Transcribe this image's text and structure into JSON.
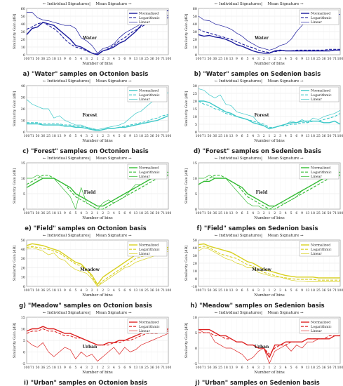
{
  "common": {
    "xlabel": "Number of bins",
    "ylabel": "Similarity Gain [dB]",
    "header_left": "← Individual Signatures",
    "header_sep": "|",
    "header_right": "Mean Signature →",
    "legend": [
      "Normalized",
      "Logarithmic",
      "Linear"
    ],
    "x_ticks": [
      "100",
      "71",
      "50",
      "36",
      "25",
      "18",
      "13",
      "9",
      "6",
      "5",
      "4",
      "3",
      "2",
      "1",
      "2",
      "3",
      "4",
      "5",
      "6",
      "9",
      "13",
      "18",
      "25",
      "36",
      "50",
      "71",
      "100"
    ]
  },
  "chart_data": [
    {
      "type": "line",
      "panel": "a",
      "caption": "a) \"Water\" samples on Octonion basis",
      "label": "Water",
      "color": "#1a1a9c",
      "ylim": [
        0,
        60
      ],
      "yticks": [
        0,
        10,
        20,
        30,
        40,
        50,
        60
      ],
      "series": [
        {
          "name": "Normalized",
          "values": [
            26,
            34,
            36,
            42,
            40,
            38,
            32,
            26,
            20,
            12,
            10,
            6,
            2,
            0,
            5,
            7,
            10,
            15,
            18,
            24,
            30,
            38,
            46,
            52,
            56,
            57,
            57
          ]
        },
        {
          "name": "Logarithmic",
          "values": [
            33,
            36,
            40,
            42,
            38,
            34,
            28,
            20,
            14,
            10,
            8,
            5,
            2,
            1,
            5,
            8,
            12,
            18,
            22,
            28,
            32,
            36,
            40,
            42,
            44,
            46,
            48
          ]
        },
        {
          "name": "Linear",
          "values": [
            55,
            55,
            48,
            45,
            44,
            42,
            40,
            38,
            38,
            34,
            22,
            18,
            12,
            2,
            8,
            10,
            14,
            22,
            28,
            32,
            36,
            40,
            44,
            50,
            52,
            54,
            50
          ]
        }
      ]
    },
    {
      "type": "line",
      "panel": "b",
      "caption": "b) \"Water\" samples on Sedenion basis",
      "label": "Water",
      "color": "#1a1a9c",
      "ylim": [
        0,
        60
      ],
      "yticks": [
        0,
        10,
        20,
        30,
        40,
        50,
        60
      ],
      "series": [
        {
          "name": "Normalized",
          "values": [
            26,
            24,
            25,
            23,
            22,
            20,
            17,
            13,
            11,
            8,
            5,
            3,
            2,
            2,
            5,
            6,
            5,
            5,
            5,
            5,
            5,
            5,
            5,
            5,
            5,
            6,
            6
          ]
        },
        {
          "name": "Logarithmic",
          "values": [
            33,
            30,
            28,
            26,
            24,
            22,
            20,
            17,
            14,
            11,
            9,
            6,
            4,
            3,
            4,
            5,
            5,
            5,
            6,
            6,
            6,
            6,
            6,
            6,
            7,
            7,
            7
          ]
        },
        {
          "name": "Linear",
          "values": [
            50,
            45,
            44,
            40,
            38,
            36,
            33,
            28,
            24,
            18,
            14,
            10,
            8,
            6,
            8,
            12,
            14,
            20,
            30,
            38,
            44,
            48,
            50,
            52,
            50,
            54,
            52
          ]
        }
      ]
    },
    {
      "type": "line",
      "panel": "c",
      "caption": "c) \"Forest\" samples on Octonion basis",
      "label": "Forest",
      "color": "#3cc8c8",
      "ylim": [
        0,
        40
      ],
      "yticks": [
        0,
        10,
        20,
        30,
        40
      ],
      "series": [
        {
          "name": "Normalized",
          "values": [
            7,
            7,
            7,
            6,
            6,
            6,
            6,
            5,
            5,
            4,
            4,
            3,
            2,
            1,
            2,
            3,
            3,
            4,
            4,
            5,
            6,
            7,
            8,
            9,
            10,
            12,
            14
          ]
        },
        {
          "name": "Logarithmic",
          "values": [
            8,
            8,
            8,
            7,
            7,
            7,
            7,
            6,
            6,
            5,
            5,
            4,
            3,
            1,
            2,
            3,
            3,
            4,
            5,
            6,
            7,
            8,
            9,
            11,
            12,
            14,
            15
          ]
        },
        {
          "name": "Linear",
          "values": [
            28,
            24,
            22,
            20,
            20,
            12,
            14,
            10,
            8,
            6,
            6,
            4,
            3,
            2,
            3,
            4,
            5,
            6,
            8,
            12,
            16,
            18,
            22,
            26,
            28,
            32,
            34
          ]
        }
      ]
    },
    {
      "type": "line",
      "panel": "d",
      "caption": "d) \"Forest\" samples on Sedenion basis",
      "label": "Forest",
      "color": "#3cc8c8",
      "ylim": [
        0,
        30
      ],
      "yticks": [
        0,
        5,
        10,
        15,
        20,
        25,
        30
      ],
      "series": [
        {
          "name": "Normalized",
          "values": [
            20,
            20,
            19,
            17,
            15,
            13,
            12,
            10,
            9,
            8,
            6,
            5,
            4,
            2,
            3,
            4,
            5,
            6,
            6,
            7,
            7,
            7,
            7,
            6,
            6,
            7,
            5
          ]
        },
        {
          "name": "Logarithmic",
          "values": [
            20,
            18,
            17,
            15,
            14,
            12,
            11,
            10,
            9,
            8,
            7,
            6,
            5,
            3,
            3,
            4,
            4,
            5,
            5,
            6,
            6,
            7,
            7,
            8,
            9,
            10,
            12
          ]
        },
        {
          "name": "Linear",
          "values": [
            28,
            27,
            24,
            22,
            24,
            18,
            17,
            13,
            12,
            11,
            10,
            6,
            4,
            2,
            3,
            4,
            5,
            7,
            6,
            8,
            6,
            9,
            8,
            10,
            11,
            12,
            14
          ]
        }
      ]
    },
    {
      "type": "line",
      "panel": "e",
      "caption": "e) \"Field\" samples on Octonion basis",
      "label": "Field",
      "color": "#33bb33",
      "ylim": [
        0,
        15
      ],
      "yticks": [
        0,
        5,
        10,
        15
      ],
      "series": [
        {
          "name": "Normalized",
          "values": [
            7,
            8,
            9,
            10,
            10,
            10,
            9,
            8,
            7,
            5,
            4,
            3,
            2,
            1,
            1,
            2,
            3,
            4,
            5,
            6,
            7,
            8,
            9,
            10,
            10,
            11,
            11
          ]
        },
        {
          "name": "Logarithmic",
          "values": [
            8,
            9,
            10,
            11,
            11,
            10,
            9,
            8,
            6,
            4,
            3,
            2,
            1,
            0,
            0,
            1,
            2,
            3,
            4,
            5,
            6,
            7,
            8,
            9,
            10,
            11,
            12
          ]
        },
        {
          "name": "Linear",
          "values": [
            10,
            10,
            11,
            10,
            10,
            10,
            8,
            6,
            4,
            0,
            7,
            2,
            1,
            0,
            2,
            3,
            2,
            3,
            4,
            6,
            8,
            8,
            9,
            10,
            11,
            12,
            12
          ]
        }
      ]
    },
    {
      "type": "line",
      "panel": "f",
      "caption": "f) \"Field\" samples on Sedenion basis",
      "label": "Field",
      "color": "#33bb33",
      "ylim": [
        0,
        15
      ],
      "yticks": [
        0,
        5,
        10,
        15
      ],
      "series": [
        {
          "name": "Normalized",
          "values": [
            8,
            9,
            9,
            10,
            10,
            10,
            9,
            8,
            7,
            5,
            4,
            3,
            2,
            1,
            1,
            2,
            3,
            4,
            5,
            6,
            7,
            8,
            9,
            10,
            10,
            11,
            11
          ]
        },
        {
          "name": "Logarithmic",
          "values": [
            8,
            9,
            10,
            11,
            11,
            10,
            9,
            8,
            6,
            4,
            3,
            2,
            1,
            0,
            0,
            1,
            2,
            3,
            4,
            5,
            6,
            7,
            8,
            9,
            10,
            11,
            12
          ]
        },
        {
          "name": "Linear",
          "values": [
            10,
            10,
            11,
            10,
            10,
            10,
            8,
            6,
            4,
            2,
            1,
            1,
            0,
            0,
            1,
            2,
            2,
            3,
            4,
            6,
            7,
            8,
            9,
            10,
            11,
            12,
            12
          ]
        }
      ]
    },
    {
      "type": "line",
      "panel": "g",
      "caption": "g) \"Meadow\" samples on Octonion basis",
      "label": "Meadow",
      "color": "#d8d020",
      "ylim": [
        0,
        50
      ],
      "yticks": [
        0,
        10,
        20,
        30,
        40,
        50
      ],
      "series": [
        {
          "name": "Normalized",
          "values": [
            44,
            46,
            45,
            44,
            42,
            40,
            38,
            34,
            30,
            26,
            24,
            18,
            12,
            2,
            10,
            14,
            18,
            22,
            26,
            30,
            34,
            36,
            38,
            40,
            42,
            42,
            42
          ]
        },
        {
          "name": "Logarithmic",
          "values": [
            42,
            43,
            42,
            41,
            40,
            38,
            36,
            32,
            28,
            24,
            22,
            18,
            10,
            0,
            6,
            10,
            14,
            18,
            22,
            26,
            30,
            32,
            34,
            36,
            38,
            40,
            40
          ]
        },
        {
          "name": "Linear",
          "values": [
            40,
            42,
            40,
            38,
            34,
            36,
            30,
            28,
            22,
            18,
            16,
            14,
            8,
            0,
            4,
            8,
            12,
            16,
            20,
            22,
            26,
            28,
            30,
            32,
            34,
            36,
            38
          ]
        }
      ]
    },
    {
      "type": "line",
      "panel": "h",
      "caption": "h) \"Meadow\" samples on Sedenion basis",
      "label": "Meadow",
      "color": "#d8d020",
      "ylim": [
        -10,
        50
      ],
      "yticks": [
        -10,
        0,
        10,
        20,
        30,
        40,
        50
      ],
      "series": [
        {
          "name": "Normalized",
          "values": [
            44,
            45,
            42,
            40,
            38,
            36,
            34,
            30,
            26,
            22,
            20,
            16,
            12,
            10,
            8,
            6,
            4,
            3,
            2,
            2,
            2,
            2,
            1,
            1,
            1,
            1,
            1
          ]
        },
        {
          "name": "Logarithmic",
          "values": [
            40,
            42,
            40,
            36,
            32,
            30,
            28,
            26,
            22,
            18,
            16,
            12,
            8,
            6,
            4,
            2,
            1,
            0,
            -1,
            -1,
            -1,
            -1,
            -2,
            -2,
            -2,
            -2,
            -2
          ]
        },
        {
          "name": "Linear",
          "values": [
            36,
            40,
            38,
            34,
            30,
            26,
            24,
            20,
            18,
            14,
            14,
            8,
            6,
            4,
            2,
            2,
            0,
            -2,
            -3,
            -3,
            -4,
            -4,
            -4,
            -4,
            -4,
            -4,
            -4
          ]
        }
      ]
    },
    {
      "type": "line",
      "panel": "i",
      "caption": "i) \"Urban\" samples on Octonion basis",
      "label": "Urban",
      "color": "#dd2222",
      "ylim": [
        -5,
        15
      ],
      "yticks": [
        -5,
        0,
        5,
        10,
        15
      ],
      "series": [
        {
          "name": "Normalized",
          "values": [
            9,
            10,
            10,
            11,
            10,
            10,
            9,
            8,
            8,
            7,
            6,
            5,
            4,
            3,
            3,
            4,
            4,
            5,
            5,
            6,
            7,
            8,
            9,
            9,
            9,
            9,
            10
          ]
        },
        {
          "name": "Logarithmic",
          "values": [
            8,
            9,
            9,
            10,
            9,
            9,
            8,
            7,
            7,
            6,
            6,
            5,
            4,
            3,
            3,
            3,
            4,
            4,
            5,
            5,
            6,
            7,
            8,
            8,
            8,
            9,
            9
          ]
        },
        {
          "name": "Linear",
          "values": [
            5,
            3,
            2,
            4,
            0,
            -2,
            0,
            2,
            1,
            -3,
            0,
            -2,
            -1,
            -4,
            -2,
            0,
            2,
            -1,
            2,
            0,
            1,
            3,
            4,
            5,
            6,
            7,
            8
          ]
        }
      ]
    },
    {
      "type": "line",
      "panel": "j",
      "caption": "j) \"Urban\" samples on Sedenion basis",
      "label": "Urban",
      "color": "#dd2222",
      "ylim": [
        -5,
        10
      ],
      "yticks": [
        -5,
        0,
        5,
        10
      ],
      "series": [
        {
          "name": "Normalized",
          "values": [
            6,
            6,
            6,
            5,
            4,
            4,
            3,
            2,
            2,
            1,
            1,
            0,
            0,
            -3,
            1,
            1,
            2,
            2,
            2,
            2,
            3,
            3,
            3,
            3,
            3,
            4,
            4
          ]
        },
        {
          "name": "Logarithmic",
          "values": [
            5,
            5,
            5,
            4,
            4,
            3,
            3,
            2,
            2,
            1,
            1,
            0,
            0,
            -2,
            0,
            1,
            1,
            2,
            2,
            2,
            3,
            3,
            3,
            3,
            4,
            4,
            4
          ]
        },
        {
          "name": "Linear",
          "values": [
            6,
            5,
            5,
            2,
            1,
            0,
            0,
            -1,
            -2,
            -4,
            -3,
            -1,
            0,
            -5,
            -1,
            0,
            1,
            -1,
            1,
            0,
            2,
            2,
            3,
            3,
            3,
            4,
            4
          ]
        }
      ]
    }
  ]
}
